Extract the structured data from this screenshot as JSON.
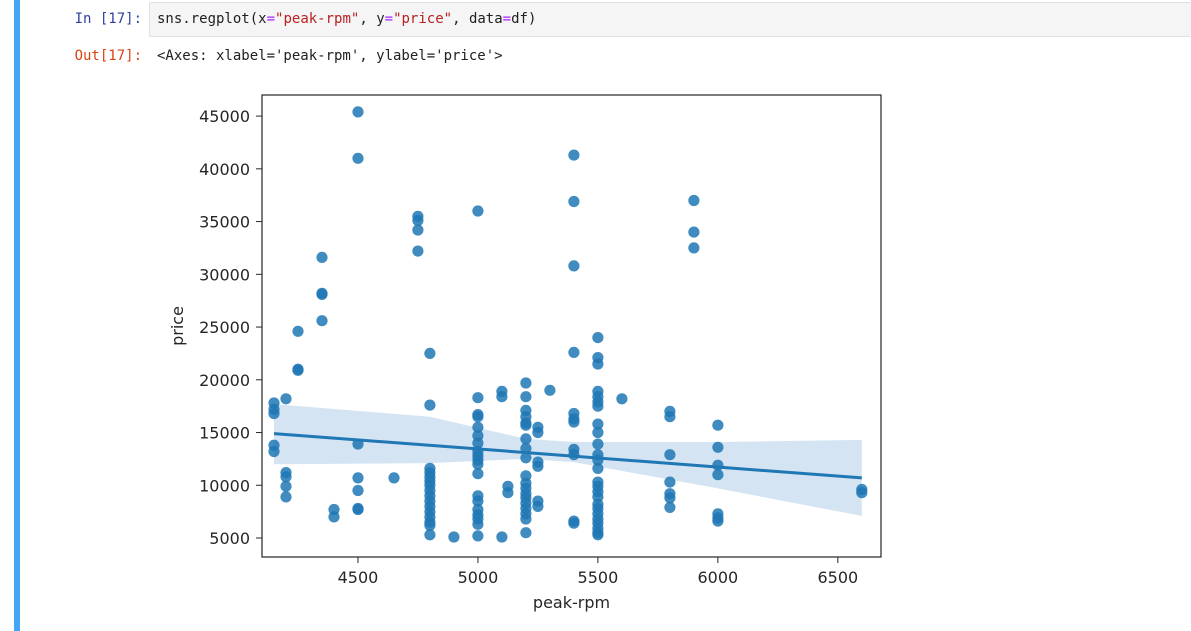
{
  "cell": {
    "in_prompt": "In [17]:",
    "out_prompt": "Out[17]:",
    "code": {
      "func": "sns.regplot",
      "open": "(",
      "arg1_name": "x",
      "eq": "=",
      "arg1_value": "\"peak-rpm\"",
      "sep": ", ",
      "arg2_name": "y",
      "arg2_value": "\"price\"",
      "arg3_name": "data",
      "arg3_value": "df",
      "close": ")"
    },
    "output_text": "<Axes: xlabel='peak-rpm', ylabel='price'>"
  },
  "colors": {
    "cell_bar": "#42a5f5",
    "points": "#1f77b4",
    "ci_band": "#c6dbef"
  },
  "chart_data": {
    "type": "scatter",
    "title": "",
    "xlabel": "peak-rpm",
    "ylabel": "price",
    "xlim": [
      4100,
      6680
    ],
    "ylim": [
      3200,
      47000
    ],
    "xticks": [
      4500,
      5000,
      5500,
      6000,
      6500
    ],
    "yticks": [
      5000,
      10000,
      15000,
      20000,
      25000,
      30000,
      35000,
      40000,
      45000
    ],
    "regression": {
      "x": [
        4150,
        6600
      ],
      "y": [
        14900,
        10700
      ],
      "ci_upper": [
        [
          4150,
          17700
        ],
        [
          4800,
          16500
        ],
        [
          5200,
          14400
        ],
        [
          5400,
          14100
        ],
        [
          6000,
          14100
        ],
        [
          6600,
          14300
        ]
      ],
      "ci_lower": [
        [
          4150,
          12000
        ],
        [
          4800,
          12100
        ],
        [
          5200,
          12500
        ],
        [
          5400,
          12200
        ],
        [
          6000,
          9700
        ],
        [
          6600,
          7100
        ]
      ]
    },
    "points": [
      [
        4150,
        17800
      ],
      [
        4150,
        17200
      ],
      [
        4150,
        16800
      ],
      [
        4150,
        13800
      ],
      [
        4150,
        13200
      ],
      [
        4200,
        18200
      ],
      [
        4200,
        11200
      ],
      [
        4200,
        10800
      ],
      [
        4200,
        9900
      ],
      [
        4200,
        8900
      ],
      [
        4250,
        24600
      ],
      [
        4250,
        21000
      ],
      [
        4250,
        20900
      ],
      [
        4350,
        31600
      ],
      [
        4350,
        28200
      ],
      [
        4350,
        28100
      ],
      [
        4350,
        25600
      ],
      [
        4400,
        7700
      ],
      [
        4400,
        7000
      ],
      [
        4500,
        45400
      ],
      [
        4500,
        41000
      ],
      [
        4500,
        13900
      ],
      [
        4500,
        10700
      ],
      [
        4500,
        9500
      ],
      [
        4500,
        7800
      ],
      [
        4500,
        7700
      ],
      [
        4650,
        10700
      ],
      [
        4750,
        35500
      ],
      [
        4750,
        35100
      ],
      [
        4750,
        34200
      ],
      [
        4750,
        32200
      ],
      [
        4800,
        22500
      ],
      [
        4800,
        17600
      ],
      [
        4800,
        11600
      ],
      [
        4800,
        11200
      ],
      [
        4800,
        10800
      ],
      [
        4800,
        10400
      ],
      [
        4800,
        10000
      ],
      [
        4800,
        9500
      ],
      [
        4800,
        9000
      ],
      [
        4800,
        8500
      ],
      [
        4800,
        8000
      ],
      [
        4800,
        7500
      ],
      [
        4800,
        7000
      ],
      [
        4800,
        6500
      ],
      [
        4800,
        6200
      ],
      [
        4800,
        5300
      ],
      [
        4900,
        5100
      ],
      [
        5000,
        36000
      ],
      [
        5000,
        18300
      ],
      [
        5000,
        16700
      ],
      [
        5000,
        16500
      ],
      [
        5000,
        15500
      ],
      [
        5000,
        14700
      ],
      [
        5000,
        14000
      ],
      [
        5000,
        13200
      ],
      [
        5000,
        12800
      ],
      [
        5000,
        12400
      ],
      [
        5000,
        12000
      ],
      [
        5000,
        11100
      ],
      [
        5000,
        9000
      ],
      [
        5000,
        8500
      ],
      [
        5000,
        7700
      ],
      [
        5000,
        7200
      ],
      [
        5000,
        6800
      ],
      [
        5000,
        6300
      ],
      [
        5000,
        5200
      ],
      [
        5100,
        18900
      ],
      [
        5100,
        18400
      ],
      [
        5100,
        5100
      ],
      [
        5125,
        9900
      ],
      [
        5125,
        9300
      ],
      [
        5200,
        19700
      ],
      [
        5200,
        18400
      ],
      [
        5200,
        17100
      ],
      [
        5200,
        16500
      ],
      [
        5200,
        15900
      ],
      [
        5200,
        15700
      ],
      [
        5200,
        14400
      ],
      [
        5200,
        13500
      ],
      [
        5200,
        12600
      ],
      [
        5200,
        10900
      ],
      [
        5200,
        10200
      ],
      [
        5200,
        9700
      ],
      [
        5200,
        9200
      ],
      [
        5200,
        8800
      ],
      [
        5200,
        8300
      ],
      [
        5200,
        7800
      ],
      [
        5200,
        7300
      ],
      [
        5200,
        6800
      ],
      [
        5200,
        5500
      ],
      [
        5250,
        15500
      ],
      [
        5250,
        15000
      ],
      [
        5250,
        12200
      ],
      [
        5250,
        11800
      ],
      [
        5250,
        8500
      ],
      [
        5250,
        8000
      ],
      [
        5300,
        19000
      ],
      [
        5400,
        41300
      ],
      [
        5400,
        36900
      ],
      [
        5400,
        30800
      ],
      [
        5400,
        22600
      ],
      [
        5400,
        16800
      ],
      [
        5400,
        16300
      ],
      [
        5400,
        16000
      ],
      [
        5400,
        13400
      ],
      [
        5400,
        12900
      ],
      [
        5400,
        6600
      ],
      [
        5400,
        6400
      ],
      [
        5500,
        24000
      ],
      [
        5500,
        22100
      ],
      [
        5500,
        21500
      ],
      [
        5500,
        18900
      ],
      [
        5500,
        18400
      ],
      [
        5500,
        17900
      ],
      [
        5500,
        17500
      ],
      [
        5500,
        15800
      ],
      [
        5500,
        15000
      ],
      [
        5500,
        13900
      ],
      [
        5500,
        12900
      ],
      [
        5500,
        12400
      ],
      [
        5500,
        11600
      ],
      [
        5500,
        10300
      ],
      [
        5500,
        9900
      ],
      [
        5500,
        9400
      ],
      [
        5500,
        8900
      ],
      [
        5500,
        8200
      ],
      [
        5500,
        7800
      ],
      [
        5500,
        7300
      ],
      [
        5500,
        6800
      ],
      [
        5500,
        6400
      ],
      [
        5500,
        5900
      ],
      [
        5500,
        5500
      ],
      [
        5500,
        5300
      ],
      [
        5600,
        18200
      ],
      [
        5800,
        17000
      ],
      [
        5800,
        16500
      ],
      [
        5800,
        12900
      ],
      [
        5800,
        10300
      ],
      [
        5800,
        9200
      ],
      [
        5800,
        8800
      ],
      [
        5800,
        7900
      ],
      [
        5900,
        37000
      ],
      [
        5900,
        34000
      ],
      [
        5900,
        32500
      ],
      [
        6000,
        15700
      ],
      [
        6000,
        13600
      ],
      [
        6000,
        11900
      ],
      [
        6000,
        11000
      ],
      [
        6000,
        7300
      ],
      [
        6000,
        6900
      ],
      [
        6000,
        6600
      ],
      [
        6600,
        9600
      ],
      [
        6600,
        9300
      ]
    ]
  }
}
